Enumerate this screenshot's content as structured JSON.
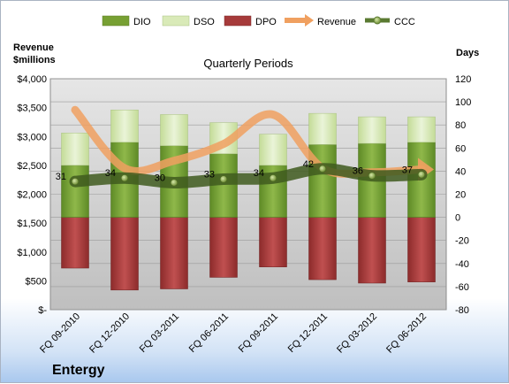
{
  "chart_data": {
    "type": "bar",
    "title": "Quarterly Periods",
    "company": "Entergy",
    "left_axis_label_line1": "Revenue",
    "left_axis_label_line2": "$millions",
    "right_axis_label": "Days",
    "left_ylim": [
      0,
      4000
    ],
    "right_ylim": [
      -80,
      120
    ],
    "left_ticks": [
      "$-",
      "$500",
      "$1,000",
      "$1,500",
      "$2,000",
      "$2,500",
      "$3,000",
      "$3,500",
      "$4,000"
    ],
    "right_ticks": [
      "-80",
      "-60",
      "-40",
      "-20",
      "0",
      "20",
      "40",
      "60",
      "80",
      "100",
      "120"
    ],
    "categories": [
      "FQ 09-2010",
      "FQ 12-2010",
      "FQ 03-2011",
      "FQ 06-2011",
      "FQ 09-2011",
      "FQ 12-2011",
      "FQ 03-2012",
      "FQ 06-2012"
    ],
    "series": [
      {
        "name": "DIO",
        "axis": "right",
        "kind": "stacked-bar",
        "color": "#77a033",
        "values": [
          45,
          65,
          62,
          55,
          45,
          63,
          64,
          65
        ]
      },
      {
        "name": "DSO",
        "axis": "right",
        "kind": "stacked-bar",
        "color": "#d9eab8",
        "values": [
          28,
          28,
          27,
          27,
          27,
          27,
          23,
          22
        ]
      },
      {
        "name": "DPO",
        "axis": "right",
        "kind": "negative-bar",
        "color": "#a63a3a",
        "values": [
          -44,
          -63,
          -62,
          -52,
          -43,
          -54,
          -57,
          -56
        ]
      },
      {
        "name": "Revenue",
        "axis": "left",
        "kind": "line",
        "color": "#f0a060",
        "values": [
          3460,
          2450,
          2580,
          2870,
          3380,
          2450,
          2380,
          2430
        ]
      },
      {
        "name": "CCC",
        "axis": "right",
        "kind": "line",
        "color": "#5a7a32",
        "values": [
          31,
          34,
          30,
          33,
          34,
          42,
          36,
          37
        ]
      }
    ],
    "ccc_labels": [
      "31",
      "34",
      "30",
      "33",
      "34",
      "42",
      "36",
      "37"
    ],
    "legend_position": "top",
    "grid": true
  }
}
